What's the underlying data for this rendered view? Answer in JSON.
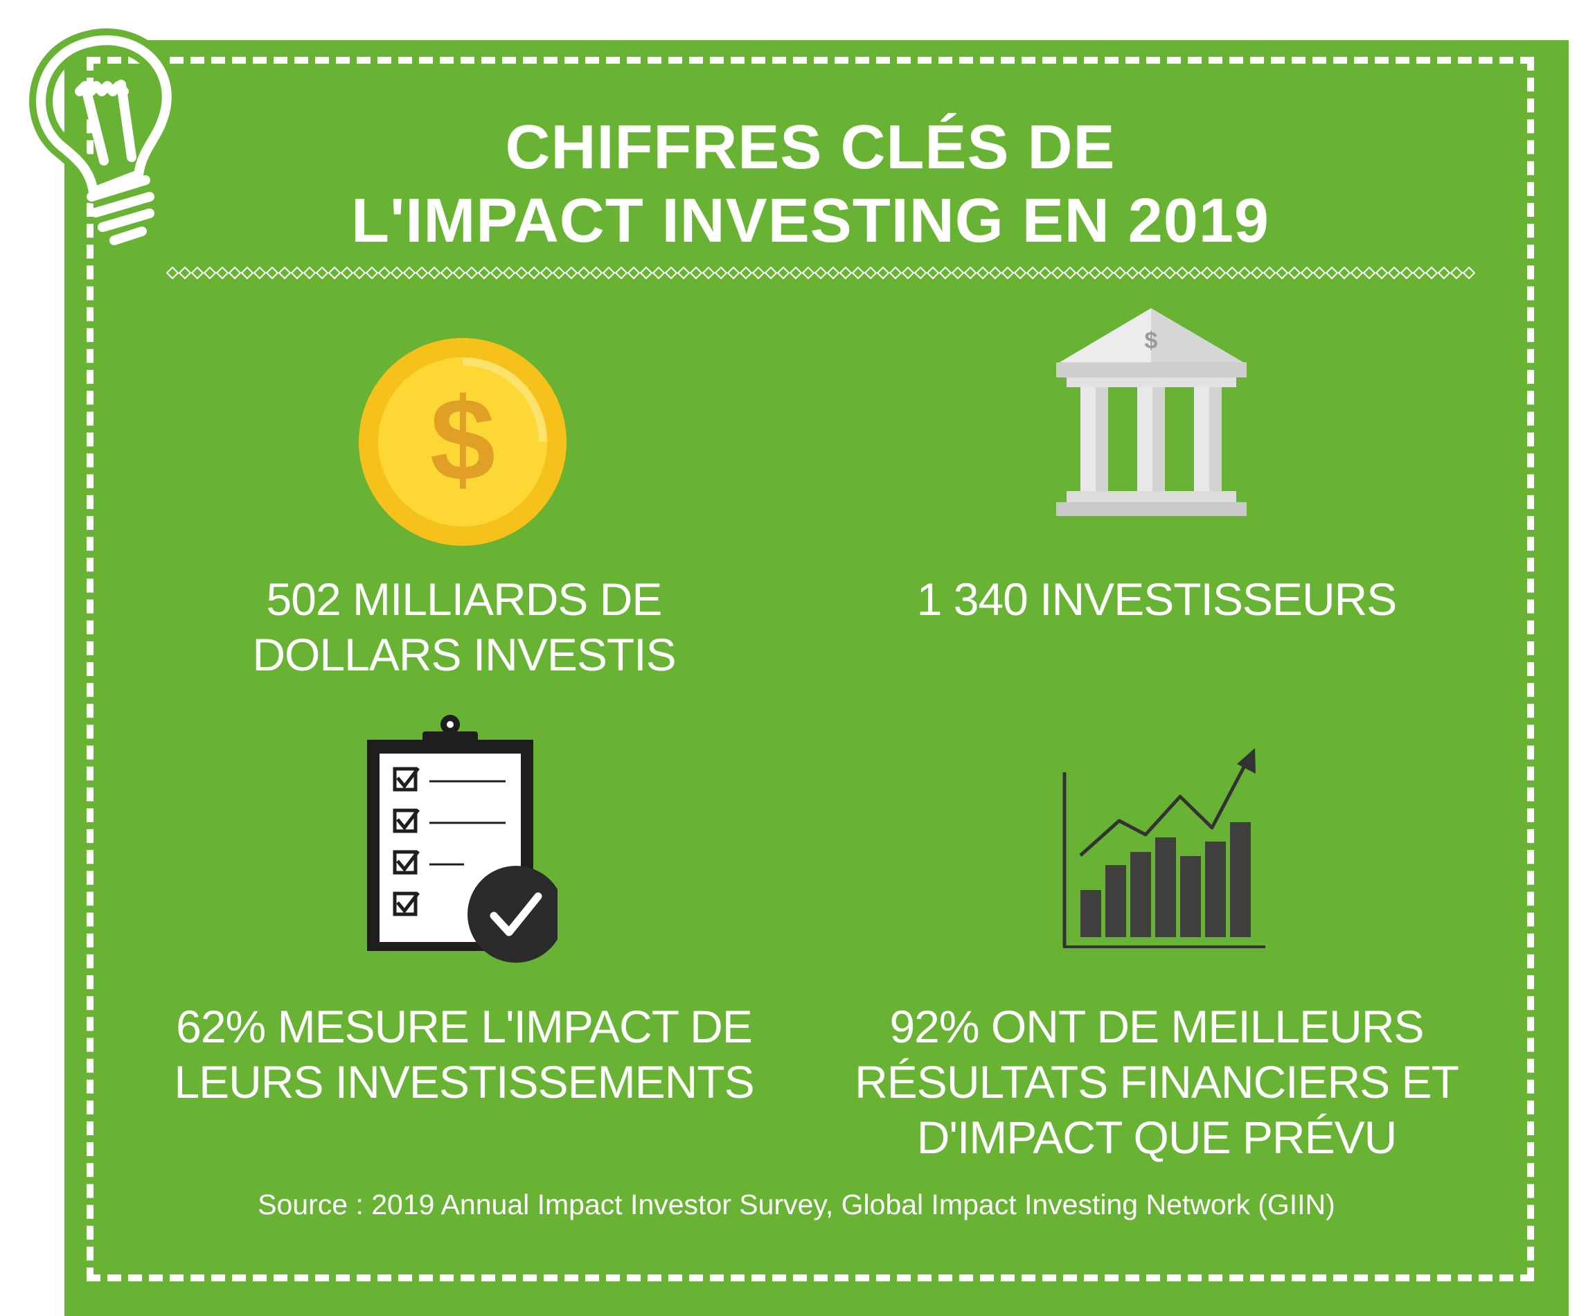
{
  "title": {
    "line1": "CHIFFRES CLÉS DE",
    "line2": "L'IMPACT INVESTING EN 2019"
  },
  "stats": [
    {
      "icon": "dollar-coin-icon",
      "line1": "502 MILLIARDS DE",
      "line2": "DOLLARS INVESTIS"
    },
    {
      "icon": "bank-building-icon",
      "line1": "1 340 INVESTISSEURS"
    },
    {
      "icon": "checklist-clipboard-icon",
      "line1": "62% MESURE L'IMPACT DE",
      "line2": "LEURS INVESTISSEMENTS"
    },
    {
      "icon": "growth-chart-icon",
      "line1": "92% ONT DE MEILLEURS",
      "line2": "RÉSULTATS FINANCIERS ET",
      "line3": "D'IMPACT QUE PRÉVU"
    }
  ],
  "source": "Source : 2019 Annual Impact Investor Survey, Global Impact Investing Network (GIIN)",
  "colors": {
    "background": "#69b334",
    "text": "#ffffff",
    "coin": "#f5c518",
    "bank": "#d9d9d9",
    "dark_icon": "#333333"
  }
}
